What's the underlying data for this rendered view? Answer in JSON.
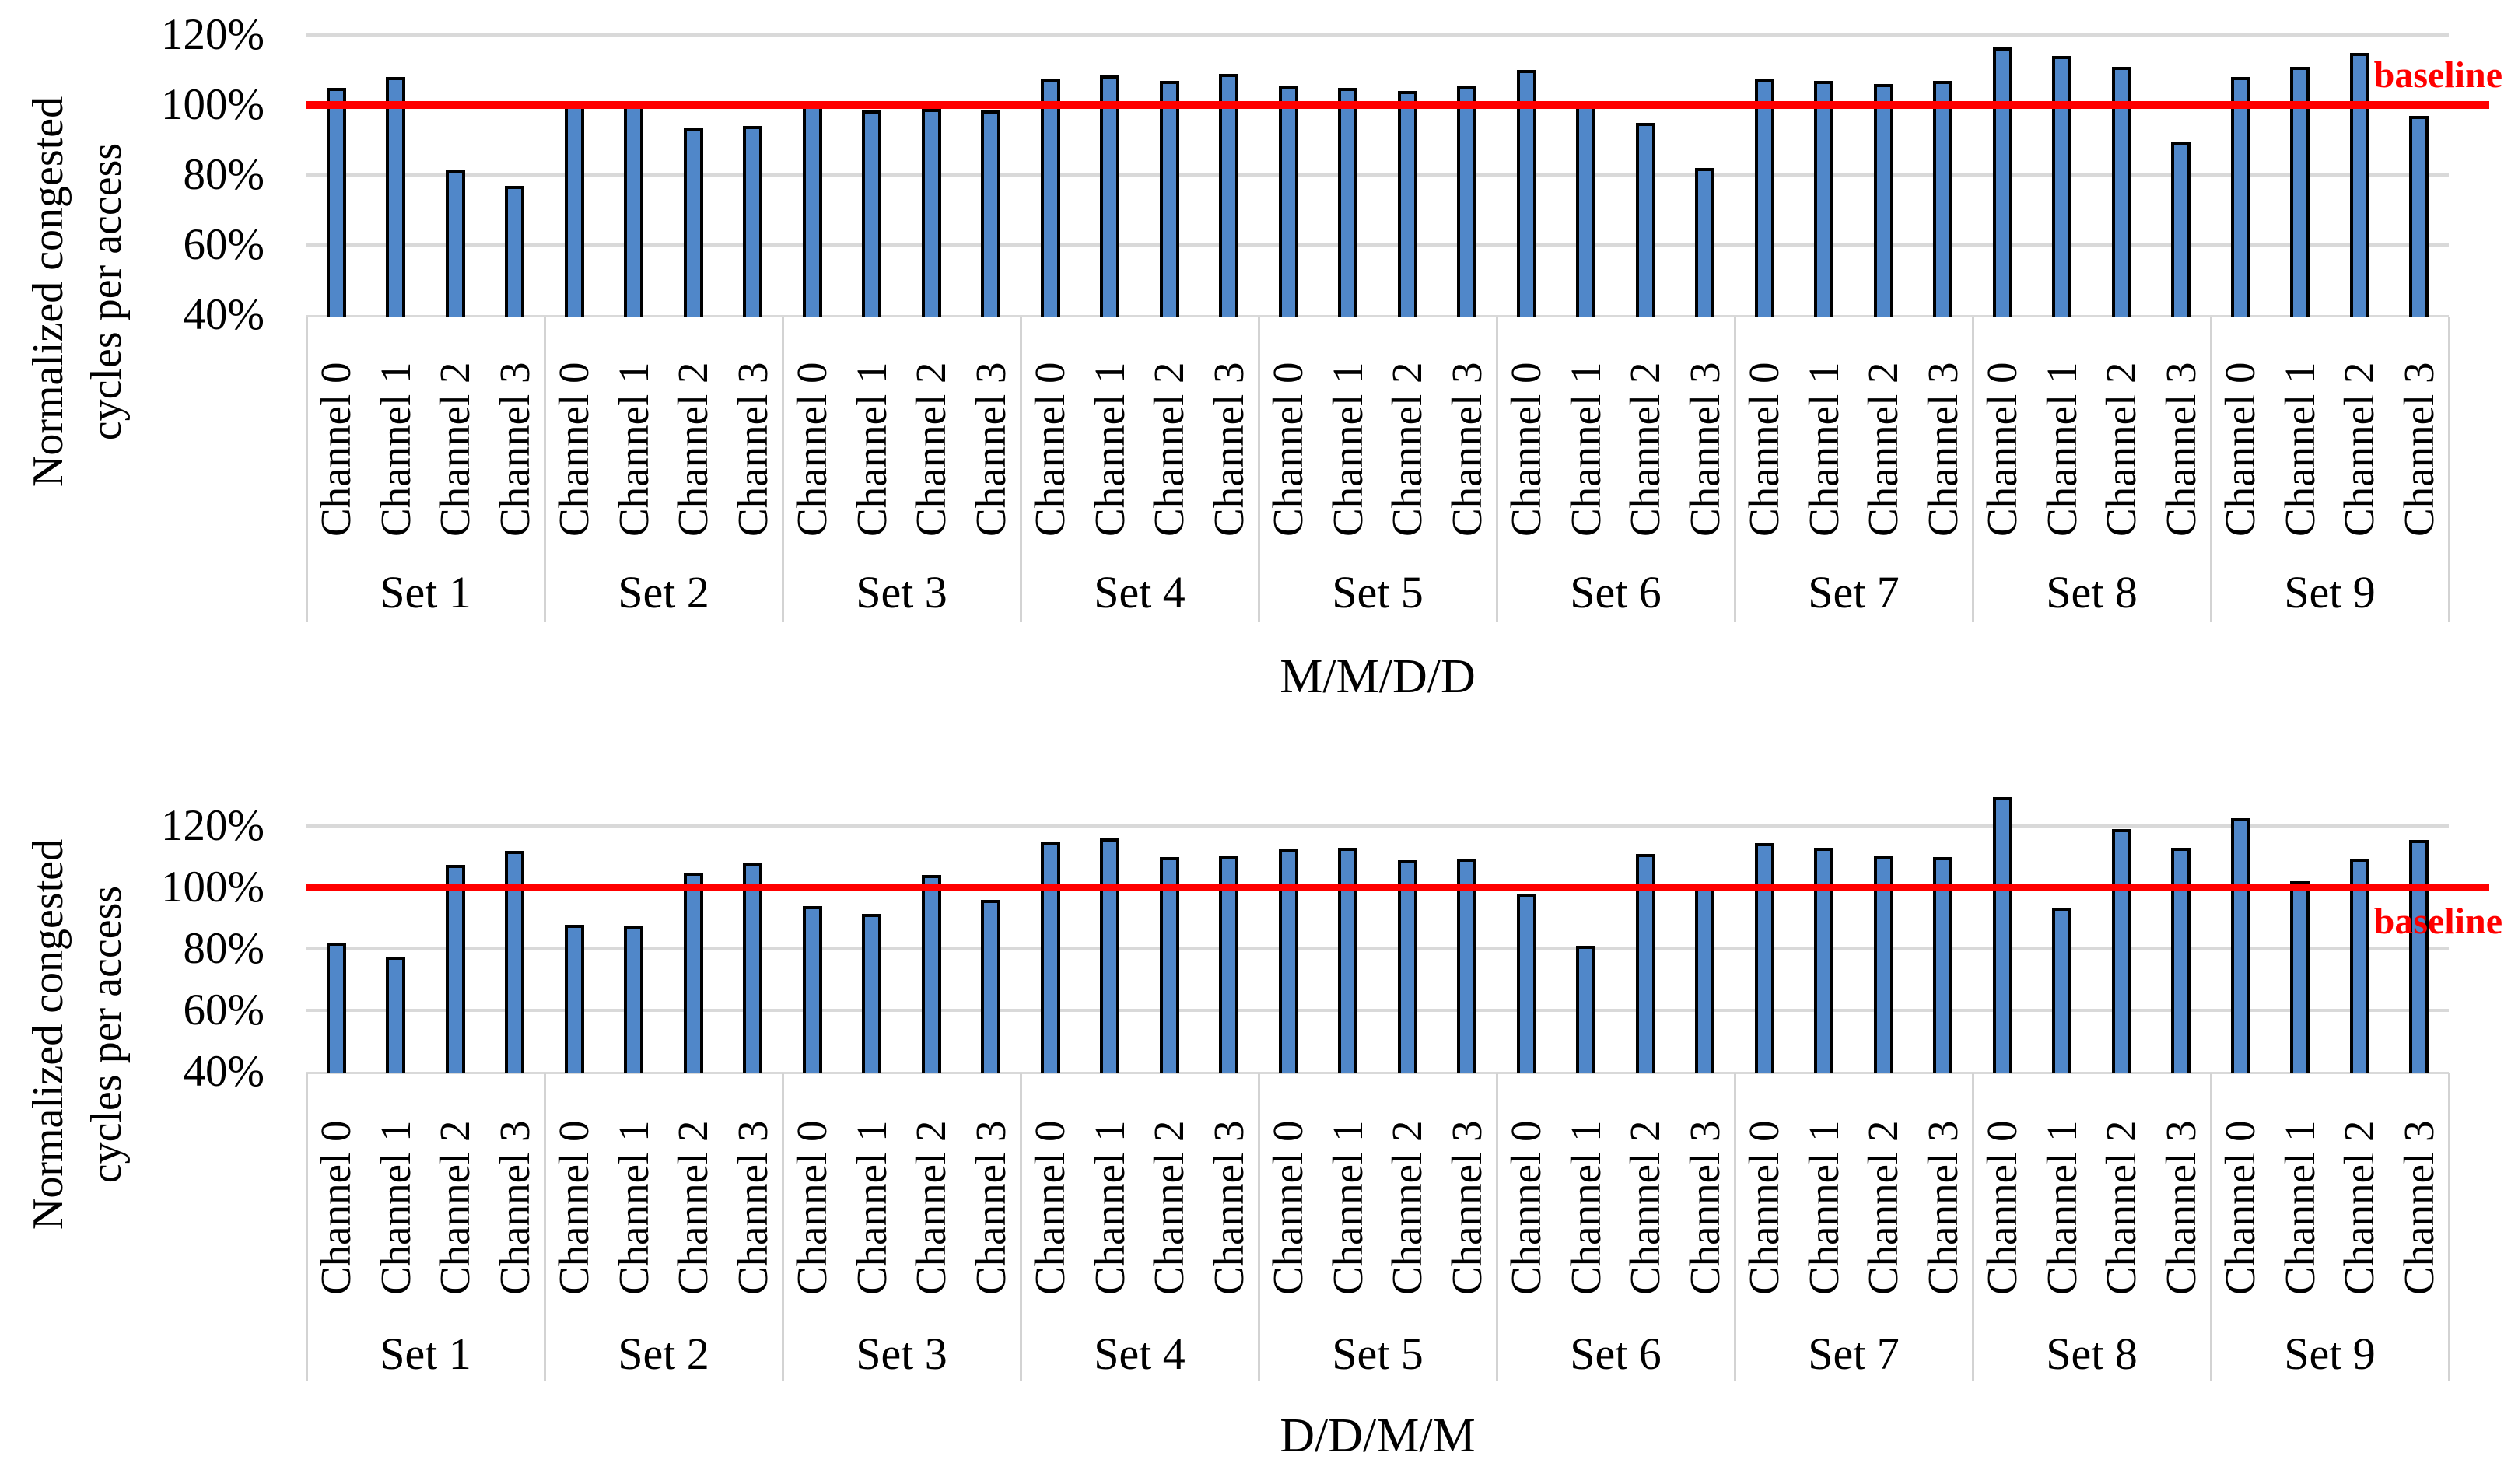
{
  "colors": {
    "bar_fill": "#5087c9",
    "bar_border": "#000000",
    "baseline_line": "#ff0000",
    "gridline": "#d9d9d9",
    "band_border": "#d3d3d3"
  },
  "chart_data": [
    {
      "type": "bar",
      "title": "M/M/D/D",
      "ylabel": "Normalized congested cycles per access",
      "ylabel_lines": [
        "Normalized congested",
        "cycles per access"
      ],
      "ytick_labels": [
        "120%",
        "100%",
        "80%",
        "60%",
        "40%"
      ],
      "ytick_values": [
        120,
        100,
        80,
        60,
        40
      ],
      "ylim": [
        40,
        130
      ],
      "grid": true,
      "baseline": {
        "label": "baseline",
        "value": 100
      },
      "categories": [
        "Channel 0",
        "Channel 1",
        "Channel 2",
        "Channel 3"
      ],
      "sets": [
        {
          "label": "Set 1",
          "values": [
            105,
            108,
            81.5,
            77
          ]
        },
        {
          "label": "Set 2",
          "values": [
            100.5,
            101,
            93.5,
            94
          ]
        },
        {
          "label": "Set 3",
          "values": [
            101,
            98.5,
            99,
            98.5
          ]
        },
        {
          "label": "Set 4",
          "values": [
            107.5,
            108.5,
            107,
            109
          ]
        },
        {
          "label": "Set 5",
          "values": [
            105.5,
            105,
            104,
            105.5
          ]
        },
        {
          "label": "Set 6",
          "values": [
            110,
            100.5,
            95,
            82
          ]
        },
        {
          "label": "Set 7",
          "values": [
            107.5,
            107,
            106,
            107
          ]
        },
        {
          "label": "Set 8",
          "values": [
            116.5,
            114,
            111,
            89.5
          ]
        },
        {
          "label": "Set 9",
          "values": [
            108,
            111,
            115,
            97
          ]
        }
      ]
    },
    {
      "type": "bar",
      "title": "D/D/M/M",
      "ylabel": "Normalized congested cycles per access",
      "ylabel_lines": [
        "Normalized congested",
        "cycles per access"
      ],
      "ytick_labels": [
        "120%",
        "100%",
        "80%",
        "60%",
        "40%"
      ],
      "ytick_values": [
        120,
        100,
        80,
        60,
        40
      ],
      "ylim": [
        40,
        132
      ],
      "grid": true,
      "baseline": {
        "label": "baseline",
        "value": 100
      },
      "categories": [
        "Channel 0",
        "Channel 1",
        "Channel 2",
        "Channel 3"
      ],
      "sets": [
        {
          "label": "Set 1",
          "values": [
            82,
            77.5,
            107.5,
            112
          ]
        },
        {
          "label": "Set 2",
          "values": [
            88,
            87.5,
            105,
            108
          ]
        },
        {
          "label": "Set 3",
          "values": [
            94,
            91.5,
            104,
            96
          ]
        },
        {
          "label": "Set 4",
          "values": [
            115,
            116,
            110,
            110.5
          ]
        },
        {
          "label": "Set 5",
          "values": [
            112.5,
            113,
            109,
            109.5
          ]
        },
        {
          "label": "Set 6",
          "values": [
            98,
            81,
            111,
            100.5
          ]
        },
        {
          "label": "Set 7",
          "values": [
            114.5,
            113,
            110.5,
            110
          ]
        },
        {
          "label": "Set 8",
          "values": [
            129.5,
            93.5,
            119,
            113
          ]
        },
        {
          "label": "Set 9",
          "values": [
            122.5,
            102,
            109.5,
            115.5
          ]
        }
      ]
    }
  ]
}
